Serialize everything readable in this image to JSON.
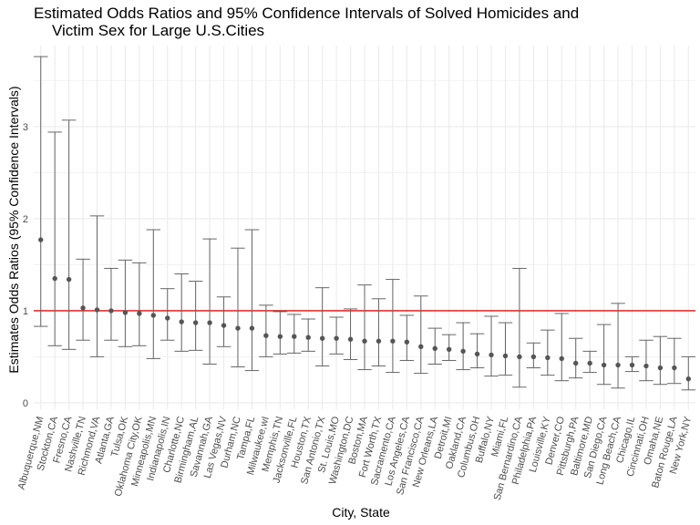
{
  "chart_data": {
    "type": "scatter",
    "title_lines": [
      "Estimated Odds Ratios and 95% Confidence Intervals of Solved Homicides and",
      "Victim Sex for Large U.S.Cities"
    ],
    "xlabel": "City, State",
    "ylabel": "Estimates Odds Ratios (95% Confidence Intervals)",
    "ylim": [
      -0.07,
      3.88
    ],
    "yticks": [
      0,
      1,
      2,
      3
    ],
    "grid": true,
    "reference_line": {
      "y": 1,
      "color": "#ff0000"
    },
    "point_color": "#555555",
    "errorbar_color": "#666666",
    "points": [
      {
        "city": "Albuquerque,NM",
        "estimate": 1.77,
        "low": 0.83,
        "high": 3.76
      },
      {
        "city": "Stockton,CA",
        "estimate": 1.35,
        "low": 0.62,
        "high": 2.94
      },
      {
        "city": "Fresno,CA",
        "estimate": 1.34,
        "low": 0.58,
        "high": 3.07
      },
      {
        "city": "Nashville,TN",
        "estimate": 1.03,
        "low": 0.68,
        "high": 1.56
      },
      {
        "city": "Richmond,VA",
        "estimate": 1.01,
        "low": 0.5,
        "high": 2.03
      },
      {
        "city": "Atlanta,GA",
        "estimate": 1.0,
        "low": 0.68,
        "high": 1.46
      },
      {
        "city": "Tulsa,OK",
        "estimate": 0.98,
        "low": 0.61,
        "high": 1.55
      },
      {
        "city": "Oklahoma City,OK",
        "estimate": 0.97,
        "low": 0.62,
        "high": 1.52
      },
      {
        "city": "Minneapolis,MN",
        "estimate": 0.95,
        "low": 0.48,
        "high": 1.88
      },
      {
        "city": "Indianapolis,IN",
        "estimate": 0.92,
        "low": 0.68,
        "high": 1.24
      },
      {
        "city": "Charlotte,NC",
        "estimate": 0.88,
        "low": 0.56,
        "high": 1.4
      },
      {
        "city": "Birmingham,AL",
        "estimate": 0.87,
        "low": 0.57,
        "high": 1.32
      },
      {
        "city": "Savannah,GA",
        "estimate": 0.87,
        "low": 0.42,
        "high": 1.78
      },
      {
        "city": "Las Vegas,NV",
        "estimate": 0.84,
        "low": 0.61,
        "high": 1.15
      },
      {
        "city": "Durham,NC",
        "estimate": 0.81,
        "low": 0.39,
        "high": 1.68
      },
      {
        "city": "Tampa,FL",
        "estimate": 0.81,
        "low": 0.35,
        "high": 1.88
      },
      {
        "city": "Milwaukee,wI",
        "estimate": 0.73,
        "low": 0.5,
        "high": 1.06
      },
      {
        "city": "Memphis,TN",
        "estimate": 0.72,
        "low": 0.53,
        "high": 0.99
      },
      {
        "city": "Jacksonville,FL",
        "estimate": 0.72,
        "low": 0.54,
        "high": 0.96
      },
      {
        "city": "Houston,TX",
        "estimate": 0.71,
        "low": 0.56,
        "high": 0.91
      },
      {
        "city": "San Antonio,TX",
        "estimate": 0.7,
        "low": 0.4,
        "high": 1.25
      },
      {
        "city": "St. Louis,MO",
        "estimate": 0.7,
        "low": 0.53,
        "high": 0.93
      },
      {
        "city": "Washington,DC",
        "estimate": 0.69,
        "low": 0.47,
        "high": 1.02
      },
      {
        "city": "Boston,MA",
        "estimate": 0.67,
        "low": 0.36,
        "high": 1.28
      },
      {
        "city": "Fort Worth,TX",
        "estimate": 0.67,
        "low": 0.4,
        "high": 1.13
      },
      {
        "city": "Sacramento,CA",
        "estimate": 0.67,
        "low": 0.33,
        "high": 1.34
      },
      {
        "city": "Los Angeles,CA",
        "estimate": 0.66,
        "low": 0.46,
        "high": 0.95
      },
      {
        "city": "San Francisco,CA",
        "estimate": 0.61,
        "low": 0.32,
        "high": 1.16
      },
      {
        "city": "New Orleans,LA",
        "estimate": 0.59,
        "low": 0.42,
        "high": 0.81
      },
      {
        "city": "Detroit,MI",
        "estimate": 0.58,
        "low": 0.46,
        "high": 0.74
      },
      {
        "city": "Oakland,CA",
        "estimate": 0.56,
        "low": 0.36,
        "high": 0.87
      },
      {
        "city": "Columbus,OH",
        "estimate": 0.53,
        "low": 0.38,
        "high": 0.75
      },
      {
        "city": "Buffalo,NY",
        "estimate": 0.52,
        "low": 0.29,
        "high": 0.94
      },
      {
        "city": "Miami,FL",
        "estimate": 0.51,
        "low": 0.3,
        "high": 0.87
      },
      {
        "city": "San Bernardino,CA",
        "estimate": 0.5,
        "low": 0.17,
        "high": 1.46
      },
      {
        "city": "Philadelphia,PA",
        "estimate": 0.5,
        "low": 0.38,
        "high": 0.65
      },
      {
        "city": "Louisville,KY",
        "estimate": 0.49,
        "low": 0.3,
        "high": 0.79
      },
      {
        "city": "Denver,CO",
        "estimate": 0.48,
        "low": 0.24,
        "high": 0.97
      },
      {
        "city": "Pittsburgh,PA",
        "estimate": 0.43,
        "low": 0.27,
        "high": 0.7
      },
      {
        "city": "Baltimore,MD",
        "estimate": 0.43,
        "low": 0.33,
        "high": 0.56
      },
      {
        "city": "San Diego,CA",
        "estimate": 0.41,
        "low": 0.2,
        "high": 0.85
      },
      {
        "city": "Long Beach,CA",
        "estimate": 0.41,
        "low": 0.16,
        "high": 1.08
      },
      {
        "city": "Chicago,IL",
        "estimate": 0.41,
        "low": 0.34,
        "high": 0.5
      },
      {
        "city": "Cincinnati,OH",
        "estimate": 0.4,
        "low": 0.24,
        "high": 0.68
      },
      {
        "city": "Omaha,NE",
        "estimate": 0.38,
        "low": 0.2,
        "high": 0.72
      },
      {
        "city": "Baton Rouge,LA",
        "estimate": 0.38,
        "low": 0.21,
        "high": 0.7
      },
      {
        "city": "New York,NY",
        "estimate": 0.26,
        "low": 0.14,
        "high": 0.5
      }
    ]
  }
}
